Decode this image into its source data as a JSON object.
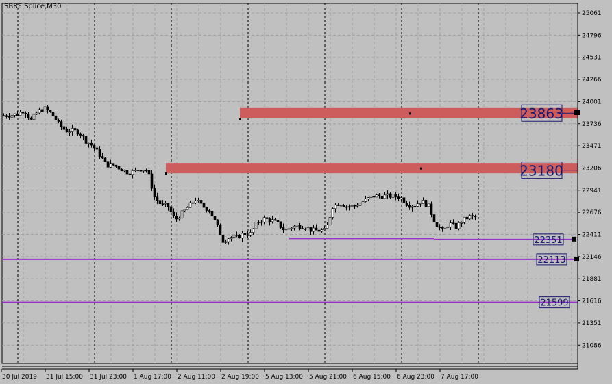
{
  "chart_data": {
    "type": "candlestick",
    "title": "SBRF Splice,M30",
    "y_ticks": [
      25061,
      24796,
      24531,
      24266,
      24001,
      23736,
      23471,
      23206,
      22941,
      22676,
      22411,
      22146,
      21881,
      21616,
      21351,
      21086
    ],
    "ylim": [
      20950,
      25150
    ],
    "x_ticks": [
      "30 Jul 2019",
      "31 Jul 15:00",
      "31 Jul 23:00",
      "1 Aug 17:00",
      "2 Aug 11:00",
      "2 Aug 19:00",
      "5 Aug 13:00",
      "5 Aug 21:00",
      "6 Aug 15:00",
      "6 Aug 23:00",
      "7 Aug 17:00"
    ],
    "grid": true,
    "closes": [
      23834,
      23840,
      23851,
      23900,
      23777,
      23884,
      23916,
      23859,
      23735,
      23653,
      23653,
      23637,
      23530,
      23470,
      23365,
      23241,
      23241,
      23200,
      23159,
      23159,
      23200,
      23175,
      22860,
      22764,
      22747,
      22583,
      22665,
      22747,
      22830,
      22747,
      22706,
      22541,
      22336,
      22377,
      22377,
      22418,
      22418,
      22560,
      22599,
      22583,
      22541,
      22459,
      22500,
      22517,
      22500,
      22459,
      22459,
      22459,
      22747,
      22788,
      22747,
      22747,
      22788,
      22830,
      22871,
      22871,
      22871,
      22871,
      22846,
      22764,
      22764,
      22813,
      22747,
      22541,
      22459,
      22541,
      22500,
      22583,
      22624,
      22616
    ],
    "zones": [
      {
        "label": "23863",
        "top": 23924,
        "bottom": 23801,
        "color": "#cd5c5c"
      },
      {
        "label": "23180",
        "top": 23266,
        "bottom": 23143,
        "color": "#cd5c5c"
      }
    ],
    "levels": [
      {
        "label": "22351",
        "value": 22351,
        "color": "#9932cc"
      },
      {
        "label": "22113",
        "value": 22113,
        "color": "#9932cc"
      },
      {
        "label": "21599",
        "value": 21599,
        "color": "#9932cc"
      }
    ],
    "label_color": "#191970"
  }
}
